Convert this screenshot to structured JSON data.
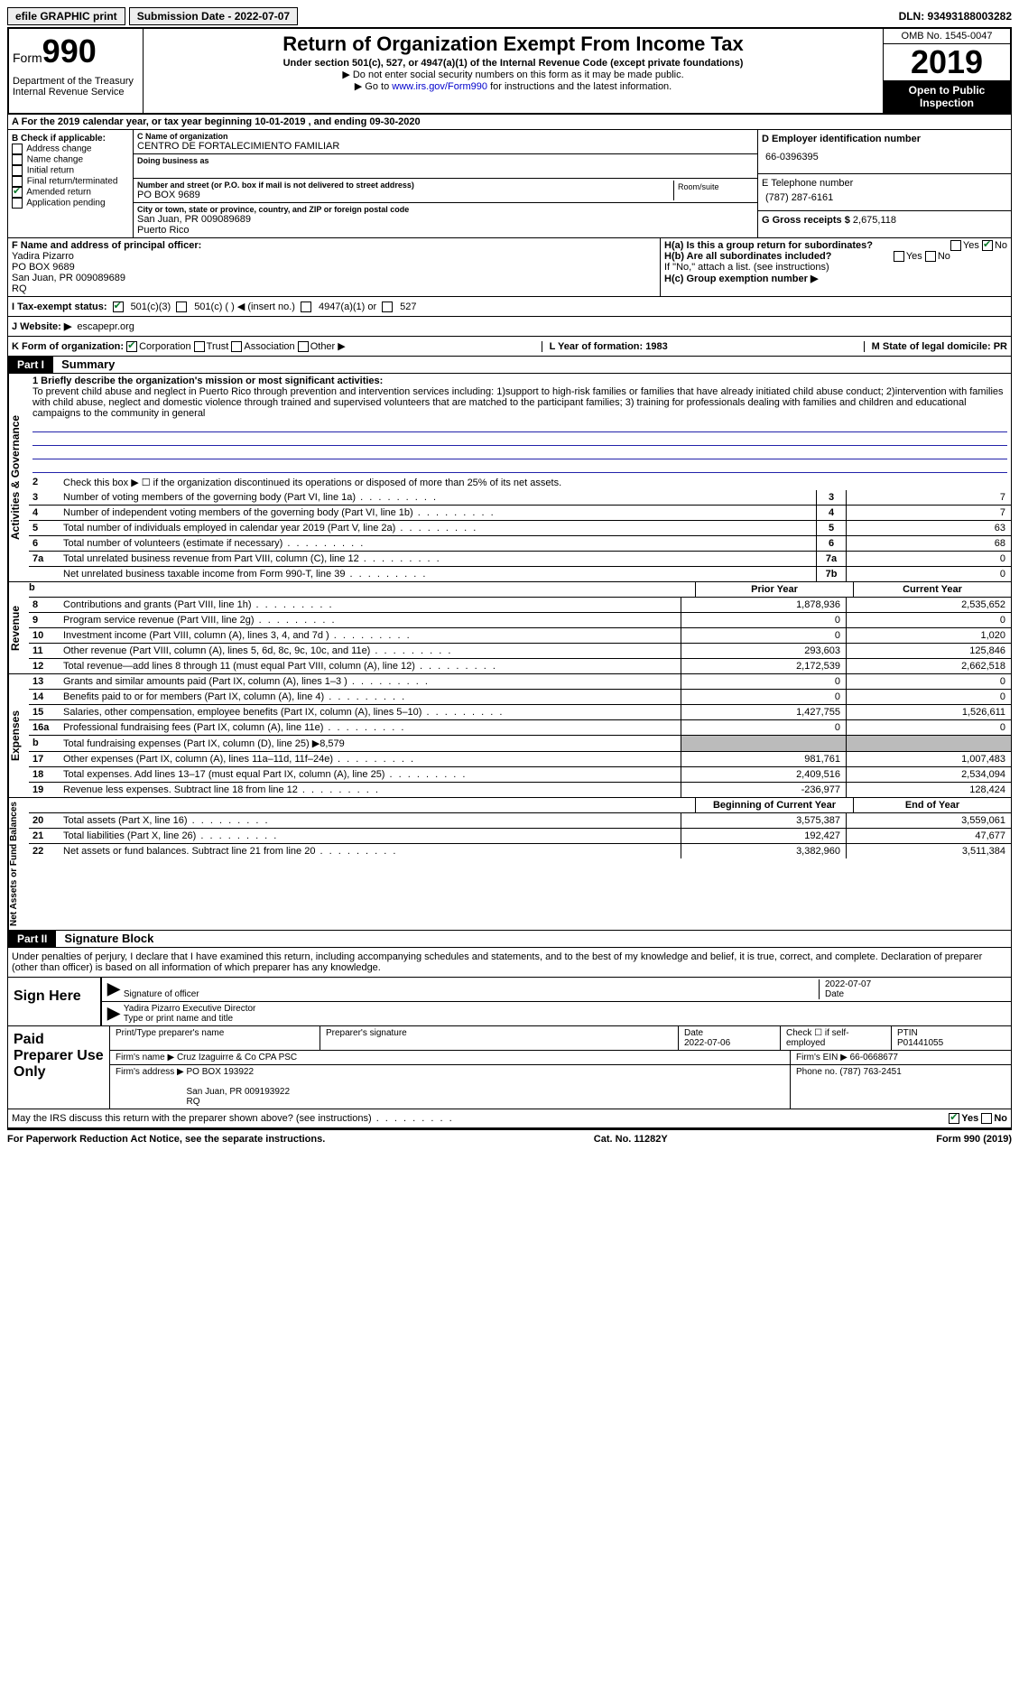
{
  "topbar": {
    "efile": "efile GRAPHIC print",
    "submission": "Submission Date - 2022-07-07",
    "dln": "DLN: 93493188003282"
  },
  "header": {
    "form_label": "Form",
    "form_num": "990",
    "title": "Return of Organization Exempt From Income Tax",
    "subtitle": "Under section 501(c), 527, or 4947(a)(1) of the Internal Revenue Code (except private foundations)",
    "note1": "▶ Do not enter social security numbers on this form as it may be made public.",
    "note2_pre": "▶ Go to ",
    "note2_link": "www.irs.gov/Form990",
    "note2_post": " for instructions and the latest information.",
    "dept": "Department of the Treasury\nInternal Revenue Service",
    "omb": "OMB No. 1545-0047",
    "year": "2019",
    "inspect": "Open to Public Inspection"
  },
  "row_a": "For the 2019 calendar year, or tax year beginning 10-01-2019    , and ending 09-30-2020",
  "box_b": {
    "label": "B Check if applicable:",
    "items": [
      "Address change",
      "Name change",
      "Initial return",
      "Final return/terminated",
      "Amended return",
      "Application pending"
    ],
    "checked_idx": 4
  },
  "box_c": {
    "name_lbl": "C Name of organization",
    "name": "CENTRO DE FORTALECIMIENTO FAMILIAR",
    "dba_lbl": "Doing business as",
    "addr_lbl": "Number and street (or P.O. box if mail is not delivered to street address)",
    "addr": "PO BOX 9689",
    "room_lbl": "Room/suite",
    "city_lbl": "City or town, state or province, country, and ZIP or foreign postal code",
    "city": "San Juan, PR   009089689\nPuerto Rico"
  },
  "box_d": {
    "lbl": "D Employer identification number",
    "val": "66-0396395"
  },
  "box_e": {
    "lbl": "E Telephone number",
    "val": "(787) 287-6161"
  },
  "box_g": {
    "lbl": "G Gross receipts $",
    "val": "2,675,118"
  },
  "officer": {
    "lbl": "F  Name and address of principal officer:",
    "name": "Yadira Pizarro",
    "addr": "PO BOX 9689\nSan Juan, PR   009089689\nRQ"
  },
  "box_h": {
    "ha": "H(a)  Is this a group return for subordinates?",
    "hb": "H(b)  Are all subordinates included?",
    "hc_note": "If \"No,\" attach a list. (see instructions)",
    "hc": "H(c)  Group exemption number ▶"
  },
  "status": {
    "lbl": "I   Tax-exempt status:",
    "opts": [
      "501(c)(3)",
      "501(c) (  ) ◀ (insert no.)",
      "4947(a)(1) or",
      "527"
    ]
  },
  "website": {
    "lbl": "J  Website: ▶",
    "val": "escapepr.org"
  },
  "k_org": {
    "lbl": "K Form of organization:",
    "opts": [
      "Corporation",
      "Trust",
      "Association",
      "Other ▶"
    ],
    "l": "L Year of formation: 1983",
    "m": "M State of legal domicile: PR"
  },
  "part1": {
    "hdr": "Part I",
    "title": "Summary"
  },
  "mission": {
    "lbl": "1  Briefly describe the organization's mission or most significant activities:",
    "text": "To prevent child abuse and neglect in Puerto Rico through prevention and intervention services including: 1)support to high-risk families or families that have already initiated child abuse conduct; 2)intervention with families with child abuse, neglect and domestic violence through trained and supervised volunteers that are matched to the participant families; 3) training for professionals dealing with families and children and educational campaigns to the community in general"
  },
  "activities_lines": [
    {
      "n": "2",
      "d": "Check this box ▶ ☐  if the organization discontinued its operations or disposed of more than 25% of its net assets."
    },
    {
      "n": "3",
      "d": "Number of voting members of the governing body (Part VI, line 1a)",
      "box": "3",
      "v": "7"
    },
    {
      "n": "4",
      "d": "Number of independent voting members of the governing body (Part VI, line 1b)",
      "box": "4",
      "v": "7"
    },
    {
      "n": "5",
      "d": "Total number of individuals employed in calendar year 2019 (Part V, line 2a)",
      "box": "5",
      "v": "63"
    },
    {
      "n": "6",
      "d": "Total number of volunteers (estimate if necessary)",
      "box": "6",
      "v": "68"
    },
    {
      "n": "7a",
      "d": "Total unrelated business revenue from Part VIII, column (C), line 12",
      "box": "7a",
      "v": "0"
    },
    {
      "n": "",
      "d": "Net unrelated business taxable income from Form 990-T, line 39",
      "box": "7b",
      "v": "0"
    }
  ],
  "rev_hdr": {
    "prior": "Prior Year",
    "curr": "Current Year"
  },
  "revenue_lines": [
    {
      "n": "8",
      "d": "Contributions and grants (Part VIII, line 1h)",
      "p": "1,878,936",
      "c": "2,535,652"
    },
    {
      "n": "9",
      "d": "Program service revenue (Part VIII, line 2g)",
      "p": "0",
      "c": "0"
    },
    {
      "n": "10",
      "d": "Investment income (Part VIII, column (A), lines 3, 4, and 7d )",
      "p": "0",
      "c": "1,020"
    },
    {
      "n": "11",
      "d": "Other revenue (Part VIII, column (A), lines 5, 6d, 8c, 9c, 10c, and 11e)",
      "p": "293,603",
      "c": "125,846"
    },
    {
      "n": "12",
      "d": "Total revenue—add lines 8 through 11 (must equal Part VIII, column (A), line 12)",
      "p": "2,172,539",
      "c": "2,662,518"
    }
  ],
  "expense_lines": [
    {
      "n": "13",
      "d": "Grants and similar amounts paid (Part IX, column (A), lines 1–3 )",
      "p": "0",
      "c": "0"
    },
    {
      "n": "14",
      "d": "Benefits paid to or for members (Part IX, column (A), line 4)",
      "p": "0",
      "c": "0"
    },
    {
      "n": "15",
      "d": "Salaries, other compensation, employee benefits (Part IX, column (A), lines 5–10)",
      "p": "1,427,755",
      "c": "1,526,611"
    },
    {
      "n": "16a",
      "d": "Professional fundraising fees (Part IX, column (A), line 11e)",
      "p": "0",
      "c": "0"
    },
    {
      "n": "b",
      "d": "Total fundraising expenses (Part IX, column (D), line 25) ▶8,579",
      "gray": true
    },
    {
      "n": "17",
      "d": "Other expenses (Part IX, column (A), lines 11a–11d, 11f–24e)",
      "p": "981,761",
      "c": "1,007,483"
    },
    {
      "n": "18",
      "d": "Total expenses. Add lines 13–17 (must equal Part IX, column (A), line 25)",
      "p": "2,409,516",
      "c": "2,534,094"
    },
    {
      "n": "19",
      "d": "Revenue less expenses. Subtract line 18 from line 12",
      "p": "-236,977",
      "c": "128,424"
    }
  ],
  "na_hdr": {
    "b": "Beginning of Current Year",
    "e": "End of Year"
  },
  "na_lines": [
    {
      "n": "20",
      "d": "Total assets (Part X, line 16)",
      "p": "3,575,387",
      "c": "3,559,061"
    },
    {
      "n": "21",
      "d": "Total liabilities (Part X, line 26)",
      "p": "192,427",
      "c": "47,677"
    },
    {
      "n": "22",
      "d": "Net assets or fund balances. Subtract line 21 from line 20",
      "p": "3,382,960",
      "c": "3,511,384"
    }
  ],
  "part2": {
    "hdr": "Part II",
    "title": "Signature Block"
  },
  "penalty": "Under penalties of perjury, I declare that I have examined this return, including accompanying schedules and statements, and to the best of my knowledge and belief, it is true, correct, and complete. Declaration of preparer (other than officer) is based on all information of which preparer has any knowledge.",
  "sign": {
    "here": "Sign Here",
    "sig_lbl": "Signature of officer",
    "date": "2022-07-07",
    "date_lbl": "Date",
    "name": "Yadira Pizarro  Executive Director",
    "name_lbl": "Type or print name and title"
  },
  "prep": {
    "lbl": "Paid Preparer Use Only",
    "h1": "Print/Type preparer's name",
    "h2": "Preparer's signature",
    "h3": "Date",
    "date": "2022-07-06",
    "h4": "Check ☐ if self-employed",
    "h5": "PTIN",
    "ptin": "P01441055",
    "firm_lbl": "Firm's name    ▶",
    "firm": "Cruz Izaguirre & Co CPA PSC",
    "ein_lbl": "Firm's EIN ▶",
    "ein": "66-0668677",
    "addr_lbl": "Firm's address ▶",
    "addr": "PO BOX 193922\n\nSan Juan, PR   009193922\nRQ",
    "phone_lbl": "Phone no.",
    "phone": "(787) 763-2451"
  },
  "discuss": "May the IRS discuss this return with the preparer shown above? (see instructions)",
  "footer": {
    "left": "For Paperwork Reduction Act Notice, see the separate instructions.",
    "mid": "Cat. No. 11282Y",
    "right": "Form 990 (2019)"
  },
  "side_labels": {
    "ag": "Activities & Governance",
    "rev": "Revenue",
    "exp": "Expenses",
    "na": "Net Assets or Fund Balances"
  },
  "yes": "Yes",
  "no": "No"
}
